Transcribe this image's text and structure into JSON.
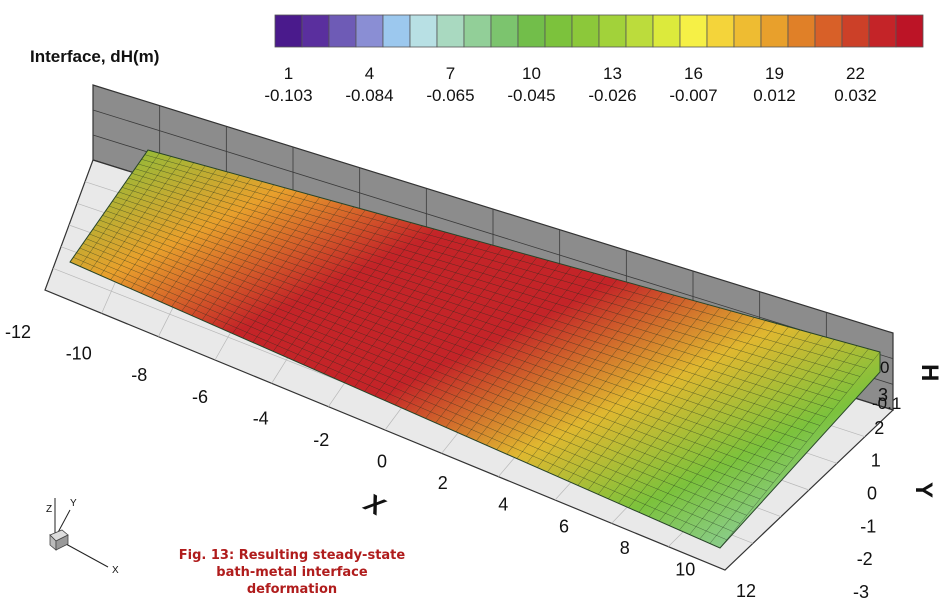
{
  "chart_data": {
    "type": "surface",
    "title": "Interface, dH(m)",
    "xlabel": "X",
    "ylabel": "Y",
    "zlabel": "H",
    "x_ticks": [
      "-12",
      "-10",
      "-8",
      "-6",
      "-4",
      "-2",
      "0",
      "2",
      "4",
      "6",
      "8",
      "10",
      "12"
    ],
    "y_ticks": [
      "3",
      "2",
      "1",
      "0",
      "-1",
      "-2",
      "-3"
    ],
    "z_ticks": [
      "0",
      "-0.1"
    ],
    "xlim": [
      -12,
      12
    ],
    "ylim": [
      -3,
      3
    ],
    "zlim": [
      -0.1,
      0.04
    ],
    "colorbar": {
      "levels": 24,
      "index_labels": [
        "1",
        "4",
        "7",
        "10",
        "13",
        "16",
        "19",
        "22"
      ],
      "value_labels": [
        "-0.103",
        "-0.084",
        "-0.065",
        "-0.045",
        "-0.026",
        "-0.007",
        "0.012",
        "0.032"
      ],
      "colors": [
        "#4a1a8c",
        "#5a2f9e",
        "#6e5bb6",
        "#8a8ed4",
        "#9cc8ee",
        "#b8e0e4",
        "#a9d9c0",
        "#92cf98",
        "#7cc46e",
        "#72be4a",
        "#7cc23c",
        "#8cc83a",
        "#a2d23a",
        "#bcdc3c",
        "#dcea3c",
        "#f6f046",
        "#f4d43a",
        "#eebc32",
        "#e8a02c",
        "#e08028",
        "#d86028",
        "#cc4028",
        "#c42428",
        "#bc1426"
      ]
    }
  },
  "axis_triad": {
    "x": "X",
    "y": "Y",
    "z": "Z"
  },
  "caption": {
    "line1": "Fig. 13: Resulting steady-state",
    "line2": "bath-metal interface deformation"
  }
}
